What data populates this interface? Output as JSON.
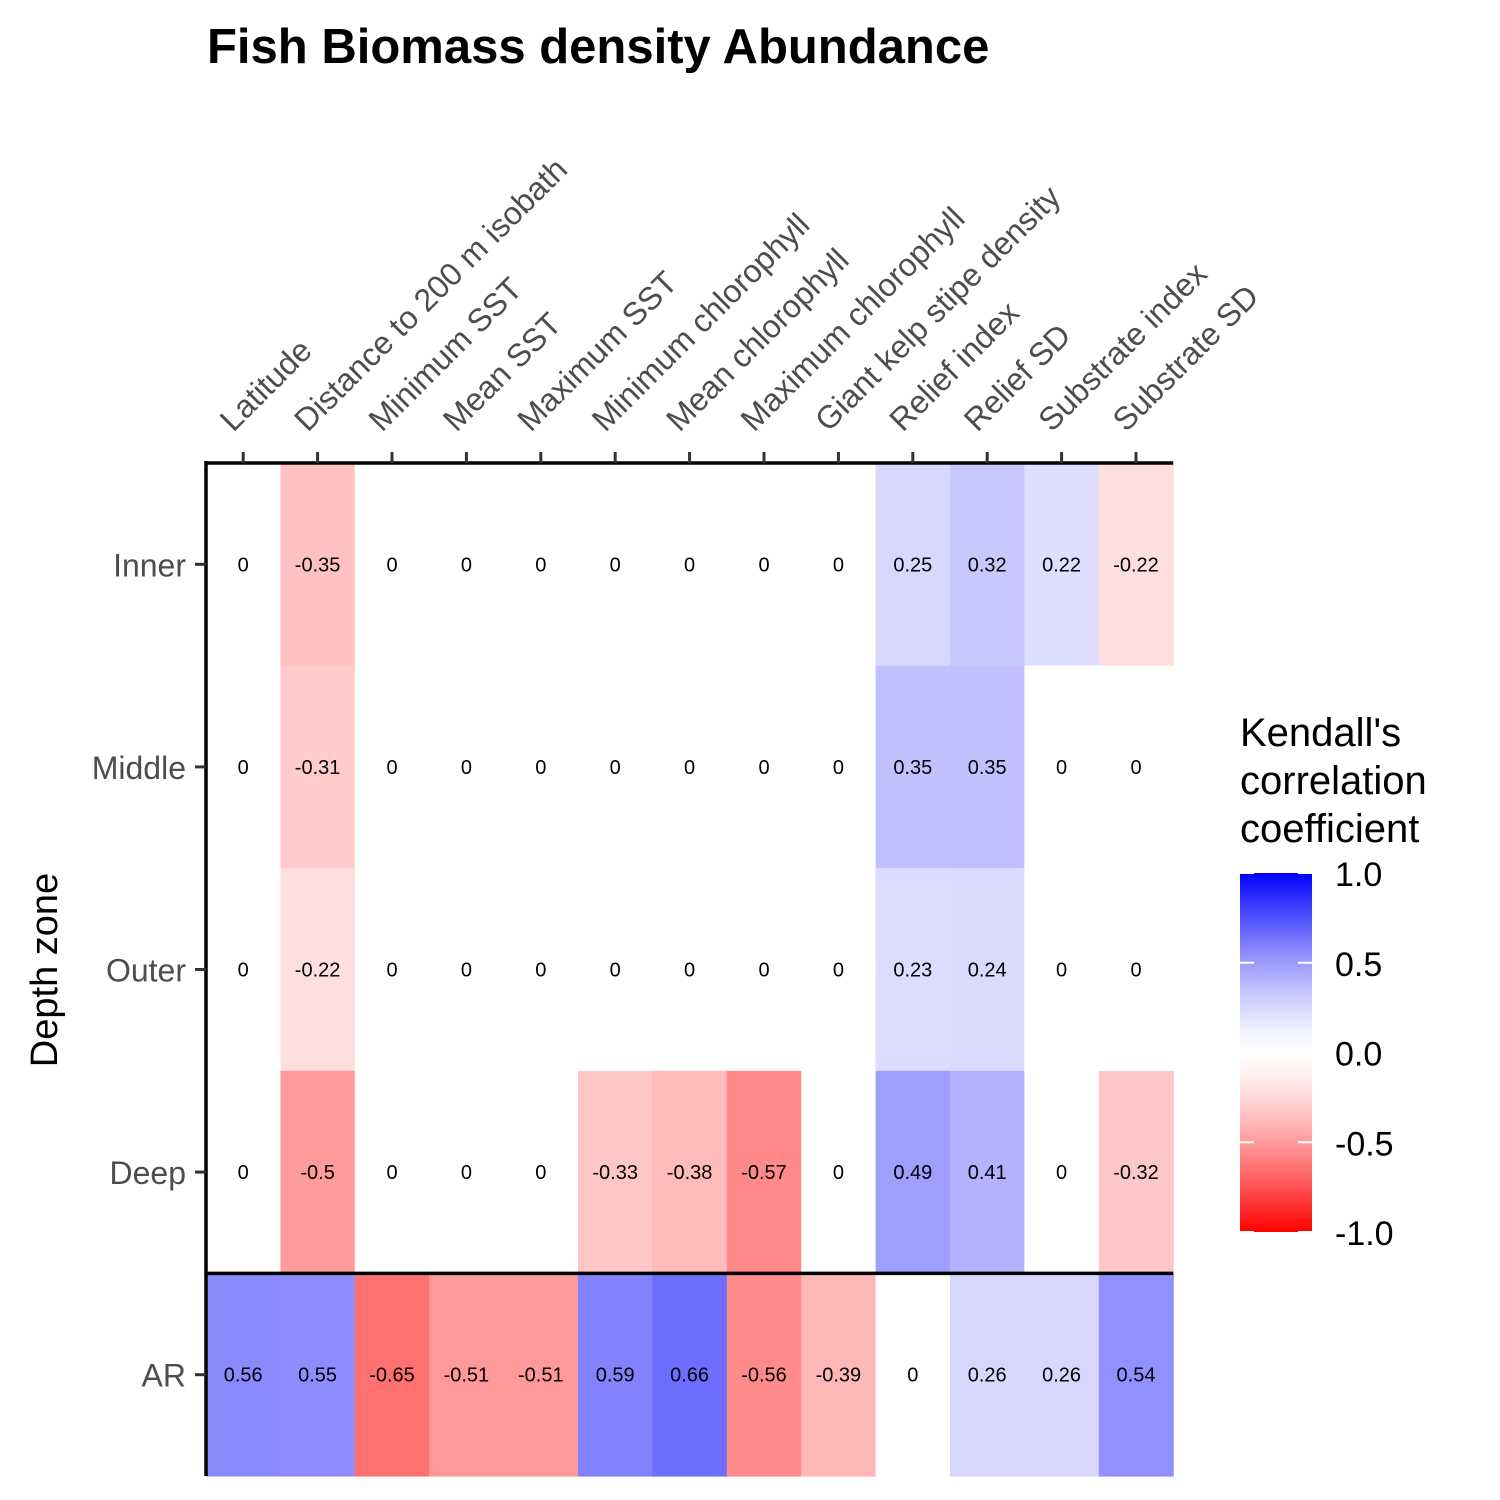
{
  "chart_data": {
    "type": "heatmap",
    "title": "Fish Biomass density Abundance",
    "ylabel": "Depth zone",
    "xlabel": "",
    "columns": [
      "Latitude",
      "Distance to 200 m isobath",
      "Minimum SST",
      "Mean SST",
      "Maximum SST",
      "Minimum chlorophyll",
      "Mean chlorophyll",
      "Maximum chlorophyll",
      "Giant kelp stipe density",
      "Relief index",
      "Relief SD",
      "Substrate index",
      "Substrate SD"
    ],
    "rows": [
      "Inner",
      "Middle",
      "Outer",
      "Deep",
      "AR"
    ],
    "values": [
      [
        0,
        -0.35,
        0,
        0,
        0,
        0,
        0,
        0,
        0,
        0.25,
        0.32,
        0.22,
        -0.22
      ],
      [
        0,
        -0.31,
        0,
        0,
        0,
        0,
        0,
        0,
        0,
        0.35,
        0.35,
        0,
        0
      ],
      [
        0,
        -0.22,
        0,
        0,
        0,
        0,
        0,
        0,
        0,
        0.23,
        0.24,
        0,
        0
      ],
      [
        0,
        -0.5,
        0,
        0,
        0,
        -0.33,
        -0.38,
        -0.57,
        0,
        0.49,
        0.41,
        0,
        -0.32
      ],
      [
        0.56,
        0.55,
        -0.65,
        -0.51,
        -0.51,
        0.59,
        0.66,
        -0.56,
        -0.39,
        0,
        0.26,
        0.26,
        0.54
      ]
    ],
    "legend": {
      "title_lines": [
        "Kendall's",
        "correlation",
        "coefficient"
      ],
      "position": "right",
      "range": [
        -1.0,
        1.0
      ],
      "ticks": [
        "1.0",
        "0.5",
        "0.0",
        "-0.5",
        "-1.0"
      ],
      "low_color": "#ff0000",
      "mid_color": "#ffffff",
      "high_color": "#0000ff"
    },
    "grid": false,
    "separator_above_row": "AR"
  }
}
